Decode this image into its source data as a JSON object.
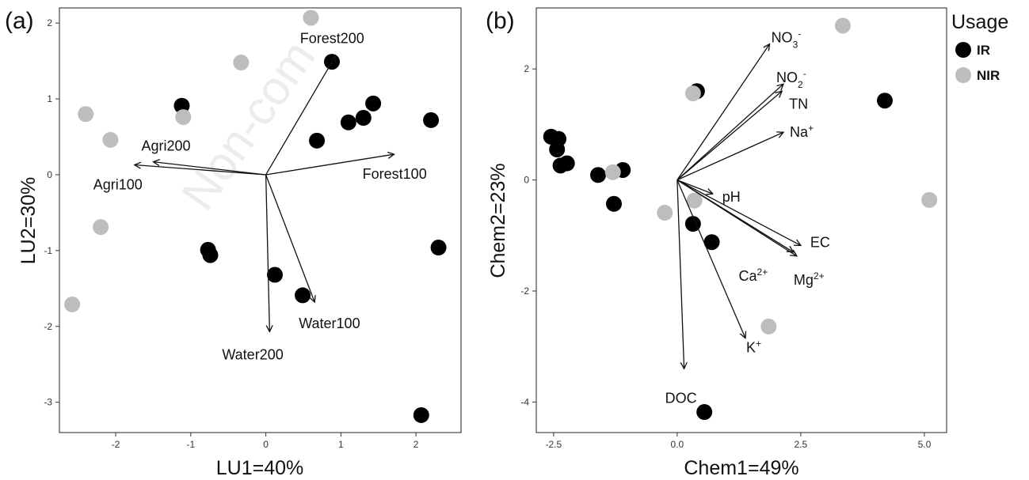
{
  "legend": {
    "title": "Usage",
    "entries": [
      {
        "label": "IR",
        "color": "#000000"
      },
      {
        "label": "NIR",
        "color": "#bdbdbd"
      }
    ]
  },
  "watermark": "Non-com",
  "chart_data": [
    {
      "type": "scatter",
      "panel_label": "(a)",
      "xlabel": "LU1=40%",
      "ylabel": "LU2=30%",
      "xlim": [
        -2.75,
        2.6
      ],
      "ylim": [
        -3.4,
        2.2
      ],
      "xticks": [
        -2,
        -1,
        0,
        1,
        2
      ],
      "yticks": [
        -3,
        -2,
        -1,
        0,
        1,
        2
      ],
      "series": [
        {
          "name": "IR",
          "color": "#000000",
          "points": [
            [
              0.88,
              1.49
            ],
            [
              1.43,
              0.94
            ],
            [
              1.3,
              0.75
            ],
            [
              1.1,
              0.69
            ],
            [
              0.68,
              0.45
            ],
            [
              2.2,
              0.72
            ],
            [
              -1.12,
              0.91
            ],
            [
              -0.77,
              -0.99
            ],
            [
              -0.74,
              -1.06
            ],
            [
              0.12,
              -1.32
            ],
            [
              0.49,
              -1.59
            ],
            [
              2.3,
              -0.96
            ],
            [
              2.07,
              -3.17
            ]
          ]
        },
        {
          "name": "NIR",
          "color": "#bdbdbd",
          "points": [
            [
              0.6,
              2.07
            ],
            [
              -0.33,
              1.48
            ],
            [
              -2.4,
              0.8
            ],
            [
              -2.07,
              0.46
            ],
            [
              -1.1,
              0.76
            ],
            [
              -2.2,
              -0.69
            ],
            [
              -2.58,
              -1.71
            ]
          ]
        }
      ],
      "arrows": [
        {
          "label": "Forest200",
          "x": 0.93,
          "y": 1.57
        },
        {
          "label": "Forest100",
          "x": 1.71,
          "y": 0.27
        },
        {
          "label": "Agri200",
          "x": -1.5,
          "y": 0.17
        },
        {
          "label": "Agri100",
          "x": -1.75,
          "y": 0.13
        },
        {
          "label": "Water200",
          "x": 0.05,
          "y": -2.07
        },
        {
          "label": "Water100",
          "x": 0.65,
          "y": -1.68
        }
      ]
    },
    {
      "type": "scatter",
      "panel_label": "(b)",
      "xlabel": "Chem1=49%",
      "ylabel": "Chem2=23%",
      "xlim": [
        -2.85,
        5.45
      ],
      "ylim": [
        -4.55,
        3.1
      ],
      "xticks": [
        -2.5,
        0.0,
        2.5,
        5.0
      ],
      "xtick_labels": [
        "-2.5",
        "0.0",
        "2.5",
        "5.0"
      ],
      "yticks": [
        -4,
        -2,
        0,
        2
      ],
      "series": [
        {
          "name": "IR",
          "color": "#000000",
          "points": [
            [
              -2.55,
              0.78
            ],
            [
              -2.4,
              0.74
            ],
            [
              -2.43,
              0.55
            ],
            [
              -2.36,
              0.26
            ],
            [
              -2.23,
              0.3
            ],
            [
              -1.6,
              0.09
            ],
            [
              -1.1,
              0.18
            ],
            [
              -1.28,
              -0.43
            ],
            [
              0.4,
              1.6
            ],
            [
              4.2,
              1.43
            ],
            [
              0.32,
              -0.79
            ],
            [
              0.7,
              -1.12
            ],
            [
              0.55,
              -4.18
            ]
          ]
        },
        {
          "name": "NIR",
          "color": "#bdbdbd",
          "points": [
            [
              0.32,
              1.56
            ],
            [
              -1.3,
              0.14
            ],
            [
              -0.25,
              -0.59
            ],
            [
              0.35,
              -0.37
            ],
            [
              3.35,
              2.78
            ],
            [
              5.1,
              -0.36
            ],
            [
              1.85,
              -2.64
            ]
          ]
        }
      ],
      "arrows": [
        {
          "label": "NO",
          "sub": "3",
          "sup": "-",
          "x": 1.87,
          "y": 2.45
        },
        {
          "label": "NO",
          "sub": "2",
          "sup": "-",
          "x": 2.15,
          "y": 1.73
        },
        {
          "label": "TN",
          "x": 2.12,
          "y": 1.6
        },
        {
          "label": "Na",
          "sup": "+",
          "x": 2.15,
          "y": 0.86
        },
        {
          "label": "pH",
          "x": 0.72,
          "y": -0.25
        },
        {
          "label": "EC",
          "x": 2.5,
          "y": -1.18
        },
        {
          "label": "Ca",
          "sup": "2+",
          "x": 2.35,
          "y": -1.3
        },
        {
          "label": "Mg",
          "sup": "2+",
          "x": 2.42,
          "y": -1.37
        },
        {
          "label": "K",
          "sup": "+",
          "x": 1.38,
          "y": -2.85
        },
        {
          "label": "DOC",
          "x": 0.14,
          "y": -3.4
        }
      ]
    }
  ]
}
